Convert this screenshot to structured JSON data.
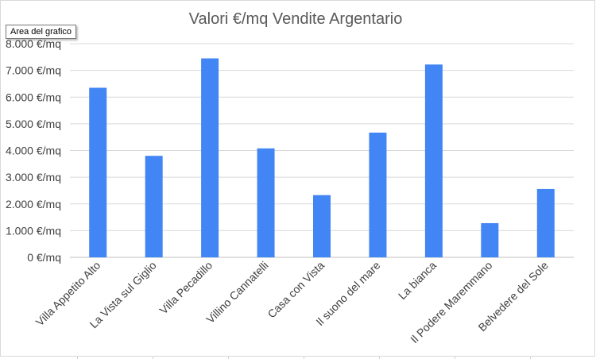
{
  "tooltip": "Area del grafico",
  "chart_data": {
    "type": "bar",
    "title": "Valori €/mq Vendite Argentario",
    "xlabel": "",
    "ylabel": "",
    "ylim": [
      0,
      8000
    ],
    "yticks": [
      "0 €/mq",
      "1.000 €/mq",
      "2.000 €/mq",
      "3.000 €/mq",
      "4.000 €/mq",
      "5.000 €/mq",
      "6.000 €/mq",
      "7.000 €/mq",
      "8.000 €/mq"
    ],
    "categories": [
      "Villa Appetito Alto",
      "La Vista sul Giglio",
      "Villa Pecadillo",
      "Villino Cannatelli",
      "Casa con Vista",
      "Il suono del mare",
      "La bianca",
      "Il Podere Maremmano",
      "Belvedere del Sole"
    ],
    "values": [
      6350,
      3800,
      7450,
      4080,
      2330,
      4670,
      7220,
      1280,
      2560
    ],
    "bar_color": "#4285f4",
    "grid": true
  }
}
